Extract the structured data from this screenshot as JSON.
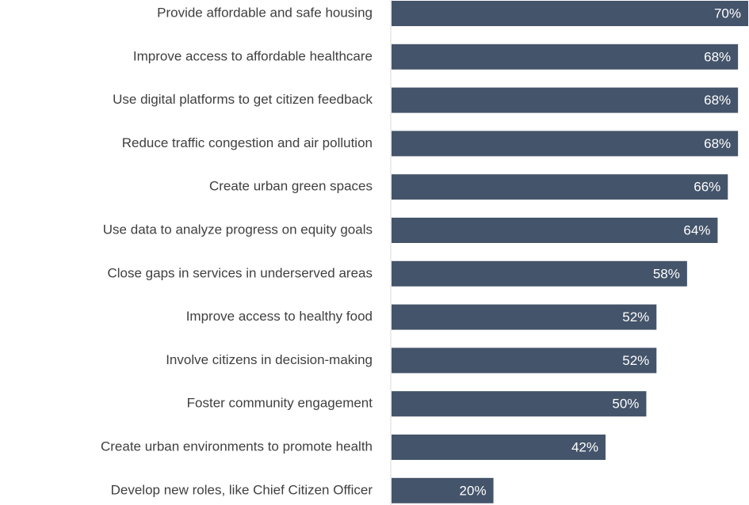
{
  "chart_data": {
    "type": "bar",
    "orientation": "horizontal",
    "color": "#44546a",
    "categories": [
      "Provide affordable and safe housing",
      "Improve access to affordable healthcare",
      "Use digital platforms to get citizen feedback",
      "Reduce traffic congestion and air pollution",
      "Create urban green spaces",
      "Use data to analyze progress on equity goals",
      "Close gaps in services in underserved areas",
      "Improve access to healthy food",
      "Involve citizens in decision-making",
      "Foster community engagement",
      "Create urban environments to promote health",
      "Develop new roles, like Chief Citizen Officer"
    ],
    "values": [
      70,
      68,
      68,
      68,
      66,
      64,
      58,
      52,
      52,
      50,
      42,
      20
    ],
    "value_labels": [
      "70%",
      "68%",
      "68%",
      "68%",
      "66%",
      "64%",
      "58%",
      "52%",
      "52%",
      "50%",
      "42%",
      "20%"
    ]
  }
}
